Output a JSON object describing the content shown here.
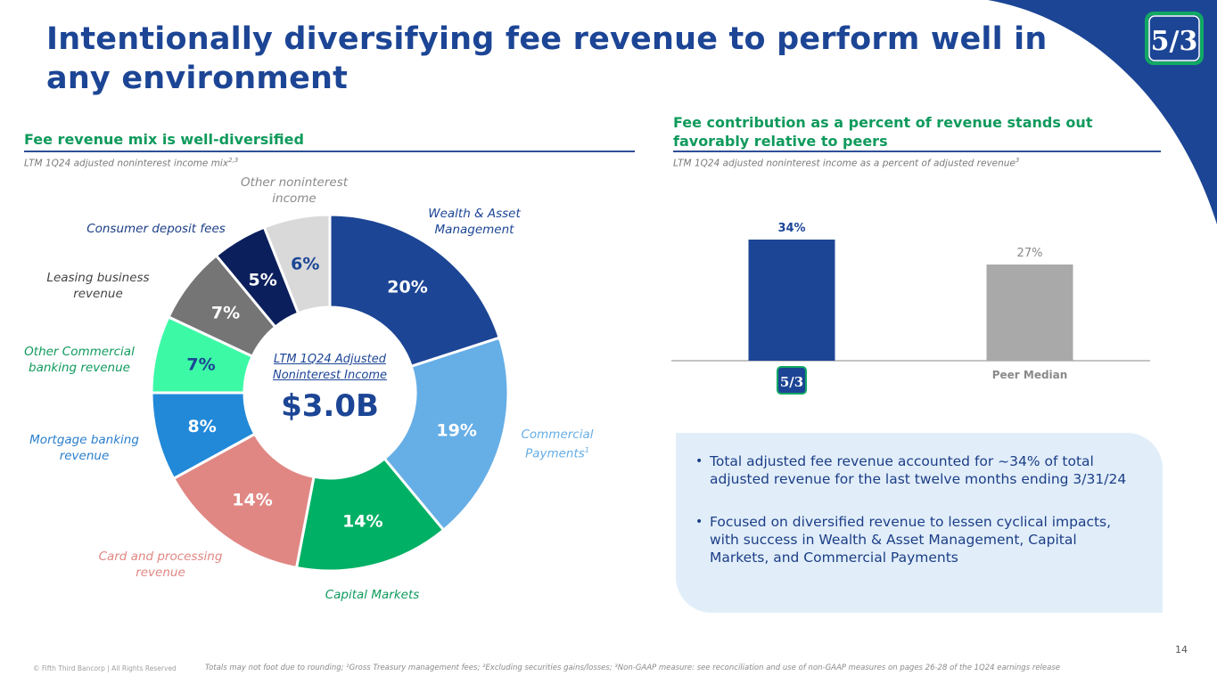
{
  "title": "Intentionally diversifying fee revenue to perform well in any environment",
  "colors": {
    "brand_blue": "#1c4595",
    "accent_green": "#0f9a5c",
    "peer_gray": "#a9a9a9"
  },
  "logo": {
    "icon": "fifth-third-logo-icon",
    "text": "5/3"
  },
  "left_section": {
    "heading": "Fee revenue mix is well-diversified",
    "subheading": "LTM 1Q24 adjusted noninterest income mix",
    "subheading_sup": "2,3",
    "center_caption_line1": "LTM 1Q24 Adjusted",
    "center_caption_line2": "Noninterest Income",
    "center_value": "$3.0B"
  },
  "right_section": {
    "heading": "Fee contribution as a percent of revenue stands out favorably relative to peers",
    "subheading": "LTM 1Q24 adjusted noninterest income as a percent of adjusted revenue",
    "subheading_sup": "3",
    "bullets": [
      "Total adjusted fee revenue accounted for ~34% of total adjusted revenue for the last twelve months ending 3/31/24",
      "Focused on diversified revenue to lessen cyclical impacts, with success in Wealth & Asset Management, Capital Markets, and Commercial Payments"
    ]
  },
  "chart_data": [
    {
      "type": "pie",
      "variant": "donut",
      "title": "LTM 1Q24 Adjusted Noninterest Income",
      "total_label": "$3.0B",
      "order": "clockwise from top",
      "slices": [
        {
          "label": "Wealth & Asset Management",
          "value": 20,
          "display": "20%",
          "color": "#1c4595",
          "label_color": "#1c4595",
          "text_color": "#ffffff"
        },
        {
          "label": "Commercial Payments",
          "label_sup": "1",
          "value": 19,
          "display": "19%",
          "color": "#66aee6",
          "label_color": "#66aee6",
          "text_color": "#ffffff"
        },
        {
          "label": "Capital Markets",
          "value": 14,
          "display": "14%",
          "color": "#00b064",
          "label_color": "#0f9a5c",
          "text_color": "#ffffff"
        },
        {
          "label": "Card and processing revenue",
          "value": 14,
          "display": "14%",
          "color": "#e08783",
          "label_color": "#e08783",
          "text_color": "#ffffff"
        },
        {
          "label": "Mortgage banking revenue",
          "value": 8,
          "display": "8%",
          "color": "#2289d9",
          "label_color": "#2a7fcc",
          "text_color": "#ffffff"
        },
        {
          "label": "Other Commercial banking revenue",
          "value": 7,
          "display": "7%",
          "color": "#3cf9a6",
          "label_color": "#0f9a5c",
          "text_color": "#1c4595"
        },
        {
          "label": "Leasing business revenue",
          "value": 7,
          "display": "7%",
          "color": "#757575",
          "label_color": "#444444",
          "text_color": "#ffffff"
        },
        {
          "label": "Consumer deposit fees",
          "value": 5,
          "display": "5%",
          "color": "#0b1f5c",
          "label_color": "#1c3e86",
          "text_color": "#ffffff"
        },
        {
          "label": "Other noninterest income",
          "value": 6,
          "display": "6%",
          "color": "#d9d9d9",
          "label_color": "#8a8a8a",
          "text_color": "#1c4595"
        }
      ]
    },
    {
      "type": "bar",
      "title": "LTM 1Q24 adjusted noninterest income as a percent of adjusted revenue",
      "categories": [
        "Fifth Third",
        "Peer Median"
      ],
      "category_display": [
        "",
        "Peer Median"
      ],
      "values": [
        34,
        27
      ],
      "value_labels": [
        "34%",
        "27%"
      ],
      "bar_colors": [
        "#1c4595",
        "#a9a9a9"
      ],
      "label_colors": [
        "#1c4595",
        "#8a8a8a"
      ],
      "unit": "%",
      "ylim": [
        0,
        40
      ],
      "grid": false,
      "xlabel": "",
      "ylabel": ""
    }
  ],
  "footer": {
    "copyright": "© Fifth Third Bancorp | All Rights Reserved",
    "notes": "Totals may not foot due to rounding; ¹Gross Treasury management fees; ²Excluding securities gains/losses; ³Non-GAAP measure: see reconciliation and use of non-GAAP measures on pages 26-28 of the 1Q24 earnings release",
    "page_number": "14"
  }
}
